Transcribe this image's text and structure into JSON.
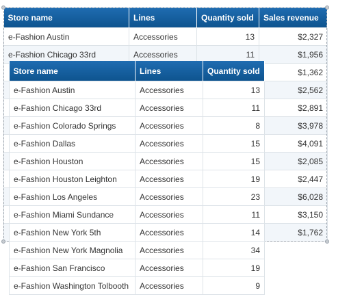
{
  "back_table": {
    "headers": [
      "Store name",
      "Lines",
      "Quantity sold",
      "Sales revenue"
    ],
    "rows": [
      [
        "e-Fashion Austin",
        "Accessories",
        "13",
        "$2,327"
      ],
      [
        "e-Fashion Chicago 33rd",
        "Accessories",
        "11",
        "$1,956"
      ],
      [
        "",
        "",
        "",
        "$1,362"
      ],
      [
        "",
        "",
        "",
        "$2,562"
      ],
      [
        "",
        "",
        "",
        "$2,891"
      ],
      [
        "",
        "",
        "",
        "$3,978"
      ],
      [
        "",
        "",
        "",
        "$4,091"
      ],
      [
        "",
        "",
        "",
        "$2,085"
      ],
      [
        "",
        "",
        "",
        "$2,447"
      ],
      [
        "",
        "",
        "",
        "$6,028"
      ],
      [
        "",
        "",
        "",
        "$3,150"
      ],
      [
        "",
        "",
        "",
        "$1,762"
      ]
    ]
  },
  "front_table": {
    "headers": [
      "Store name",
      "Lines",
      "Quantity sold"
    ],
    "rows": [
      [
        "e-Fashion Austin",
        "Accessories",
        "13"
      ],
      [
        "e-Fashion Chicago 33rd",
        "Accessories",
        "11"
      ],
      [
        "e-Fashion Colorado Springs",
        "Accessories",
        "8"
      ],
      [
        "e-Fashion Dallas",
        "Accessories",
        "15"
      ],
      [
        "e-Fashion Houston",
        "Accessories",
        "15"
      ],
      [
        "e-Fashion Houston Leighton",
        "Accessories",
        "19"
      ],
      [
        "e-Fashion Los Angeles",
        "Accessories",
        "23"
      ],
      [
        "e-Fashion Miami Sundance",
        "Accessories",
        "11"
      ],
      [
        "e-Fashion New York 5th",
        "Accessories",
        "14"
      ],
      [
        "e-Fashion New York Magnolia",
        "Accessories",
        "34"
      ],
      [
        "e-Fashion San Francisco",
        "Accessories",
        "19"
      ],
      [
        "e-Fashion Washington Tolbooth",
        "Accessories",
        "9"
      ]
    ]
  }
}
